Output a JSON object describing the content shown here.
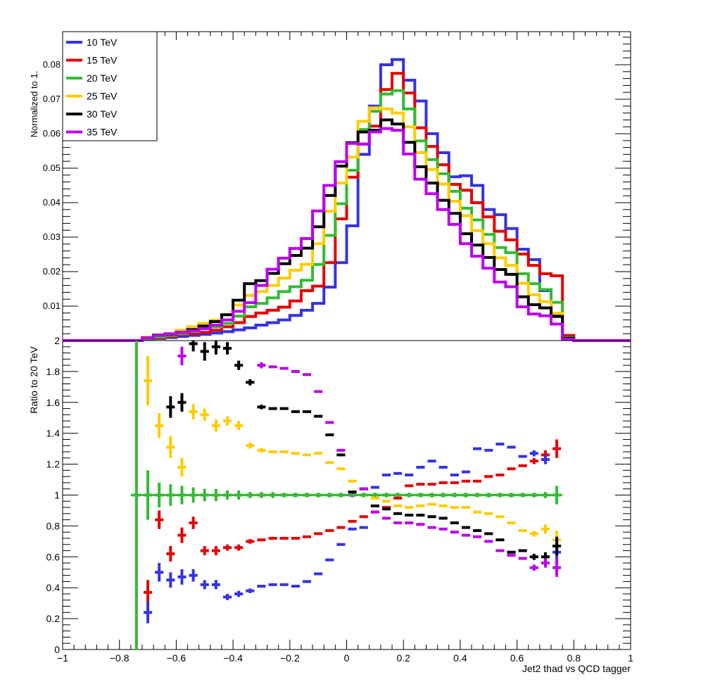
{
  "chart_data": [
    {
      "type": "line",
      "panel": "top",
      "ylabel": "Normalized to 1.",
      "xlim": [
        -1,
        1
      ],
      "ylim": [
        0,
        0.09
      ],
      "yticks": [
        0.01,
        0.02,
        0.03,
        0.04,
        0.05,
        0.06,
        0.07,
        0.08
      ],
      "ytick_labels": [
        "0.01",
        "0.02",
        "0.03",
        "0.04",
        "0.05",
        "0.06",
        "0.07",
        "0.08"
      ],
      "legend_position": "top-left",
      "bin_edges": [
        -1.0,
        -0.96,
        -0.92,
        -0.88,
        -0.84,
        -0.8,
        -0.76,
        -0.72,
        -0.68,
        -0.64,
        -0.6,
        -0.56,
        -0.52,
        -0.48,
        -0.44,
        -0.4,
        -0.36,
        -0.32,
        -0.28,
        -0.24,
        -0.2,
        -0.16,
        -0.12,
        -0.08,
        -0.04,
        0.0,
        0.04,
        0.08,
        0.12,
        0.16,
        0.2,
        0.24,
        0.28,
        0.32,
        0.36,
        0.4,
        0.44,
        0.48,
        0.52,
        0.56,
        0.6,
        0.64,
        0.68,
        0.72,
        0.76,
        0.8,
        0.84,
        0.88,
        0.92,
        0.96,
        1.0
      ],
      "series": [
        {
          "name": "10 TeV",
          "color": "#3333e6",
          "values": [
            0,
            0,
            0,
            0,
            0,
            0,
            0,
            0.0003,
            0.0006,
            0.0009,
            0.0012,
            0.0015,
            0.0018,
            0.0022,
            0.0026,
            0.0031,
            0.0037,
            0.0045,
            0.0052,
            0.006,
            0.0073,
            0.0088,
            0.0108,
            0.0155,
            0.0226,
            0.0333,
            0.054,
            0.068,
            0.08,
            0.0815,
            0.0755,
            0.0695,
            0.06,
            0.0545,
            0.0475,
            0.0478,
            0.045,
            0.038,
            0.0365,
            0.0325,
            0.0265,
            0.0235,
            0.0145,
            0.0075,
            0.0012,
            0,
            0,
            0,
            0,
            0
          ]
        },
        {
          "name": "15 TeV",
          "color": "#e60000",
          "values": [
            0,
            0,
            0,
            0,
            0,
            0,
            0,
            0.0004,
            0.0008,
            0.0012,
            0.0017,
            0.002,
            0.0024,
            0.003,
            0.004,
            0.0052,
            0.007,
            0.008,
            0.0088,
            0.0097,
            0.0115,
            0.0145,
            0.0158,
            0.0226,
            0.0353,
            0.0474,
            0.057,
            0.0622,
            0.0728,
            0.0775,
            0.0718,
            0.0617,
            0.0563,
            0.051,
            0.0453,
            0.0436,
            0.04,
            0.0359,
            0.0317,
            0.0292,
            0.0251,
            0.0218,
            0.0194,
            0.0188,
            0.0015,
            0,
            0,
            0,
            0,
            0
          ]
        },
        {
          "name": "20 TeV",
          "color": "#33bb33",
          "values": [
            0,
            0,
            0,
            0,
            0,
            0,
            0,
            0.0005,
            0.001,
            0.0015,
            0.002,
            0.0026,
            0.0035,
            0.004,
            0.005,
            0.0071,
            0.0098,
            0.0108,
            0.0124,
            0.0142,
            0.0156,
            0.0175,
            0.0221,
            0.0305,
            0.0397,
            0.0494,
            0.0612,
            0.0665,
            0.0715,
            0.0725,
            0.0672,
            0.0579,
            0.0525,
            0.0484,
            0.0433,
            0.0384,
            0.035,
            0.0308,
            0.027,
            0.0255,
            0.0194,
            0.0165,
            0.0148,
            0.0111,
            0.0009,
            0,
            0,
            0,
            0,
            0
          ]
        },
        {
          "name": "25 TeV",
          "color": "#ffcc00",
          "values": [
            0,
            0,
            0,
            0,
            0,
            0,
            0,
            0.001,
            0.0015,
            0.002,
            0.003,
            0.004,
            0.005,
            0.0059,
            0.0075,
            0.0103,
            0.0131,
            0.0142,
            0.016,
            0.0181,
            0.0204,
            0.0221,
            0.0281,
            0.0375,
            0.0457,
            0.0532,
            0.0636,
            0.0675,
            0.0672,
            0.066,
            0.062,
            0.0545,
            0.0496,
            0.0454,
            0.0404,
            0.0362,
            0.0319,
            0.0281,
            0.024,
            0.0218,
            0.0166,
            0.0133,
            0.0113,
            0.0079,
            0.0007,
            0,
            0,
            0,
            0,
            0
          ]
        },
        {
          "name": "30 TeV",
          "color": "#000000",
          "values": [
            0,
            0,
            0,
            0,
            0,
            0,
            0,
            0.0008,
            0.0016,
            0.0019,
            0.0024,
            0.0032,
            0.0042,
            0.0055,
            0.0075,
            0.0117,
            0.0165,
            0.0174,
            0.0195,
            0.0223,
            0.0247,
            0.0268,
            0.033,
            0.0421,
            0.0506,
            0.0574,
            0.0605,
            0.061,
            0.064,
            0.0628,
            0.0575,
            0.0504,
            0.0457,
            0.0407,
            0.0369,
            0.031,
            0.0277,
            0.0241,
            0.0206,
            0.0192,
            0.0127,
            0.0104,
            0.0095,
            0.007,
            0.0007,
            0,
            0,
            0,
            0,
            0
          ]
        },
        {
          "name": "35 TeV",
          "color": "#bb00ee",
          "values": [
            0,
            0,
            0,
            0,
            0,
            0,
            0,
            0.0008,
            0.0015,
            0.002,
            0.0024,
            0.0028,
            0.0035,
            0.0045,
            0.006,
            0.0085,
            0.011,
            0.016,
            0.0207,
            0.0239,
            0.0267,
            0.0296,
            0.0376,
            0.045,
            0.0519,
            0.0572,
            0.057,
            0.0605,
            0.0615,
            0.061,
            0.0541,
            0.0468,
            0.0426,
            0.038,
            0.0337,
            0.0281,
            0.0245,
            0.021,
            0.017,
            0.0156,
            0.0098,
            0.0077,
            0.0072,
            0.0048,
            0.0004,
            0,
            0,
            0,
            0,
            0
          ]
        }
      ]
    },
    {
      "type": "scatter",
      "panel": "bottom",
      "ylabel": "Ratio to 20 TeV",
      "xlabel": "Jet2 thad vs QCD tagger",
      "xlim": [
        -1,
        1
      ],
      "ylim": [
        0,
        2
      ],
      "yticks": [
        0,
        0.2,
        0.4,
        0.6,
        0.8,
        1,
        1.2,
        1.4,
        1.6,
        1.8,
        2
      ],
      "ytick_labels": [
        "0",
        "0.2",
        "0.4",
        "0.6",
        "0.8",
        "1",
        "1.2",
        "1.4",
        "1.6",
        "1.8",
        "2"
      ],
      "xticks": [
        -1,
        -0.8,
        -0.6,
        -0.4,
        -0.2,
        0,
        0.2,
        0.4,
        0.6,
        0.8,
        1
      ],
      "xtick_labels": [
        "−1",
        "−0.8",
        "−0.6",
        "−0.4",
        "−0.2",
        "0",
        "0.2",
        "0.4",
        "0.6",
        "0.8",
        "1"
      ],
      "bin_half_width": 0.02,
      "bin_centers": [
        -0.74,
        -0.7,
        -0.66,
        -0.62,
        -0.58,
        -0.54,
        -0.5,
        -0.46,
        -0.42,
        -0.38,
        -0.34,
        -0.3,
        -0.26,
        -0.22,
        -0.18,
        -0.14,
        -0.1,
        -0.06,
        -0.02,
        0.02,
        0.06,
        0.1,
        0.14,
        0.18,
        0.22,
        0.26,
        0.3,
        0.34,
        0.38,
        0.42,
        0.46,
        0.5,
        0.54,
        0.58,
        0.62,
        0.66,
        0.7,
        0.74
      ],
      "series": [
        {
          "name": "10 TeV",
          "color": "#3333e6",
          "values": [
            null,
            0.24,
            0.5,
            0.45,
            0.47,
            0.48,
            0.42,
            0.42,
            0.34,
            0.36,
            0.38,
            0.41,
            0.42,
            0.42,
            0.41,
            0.44,
            0.49,
            0.58,
            0.68,
            0.78,
            0.79,
            1.05,
            1.13,
            1.14,
            1.13,
            1.18,
            1.22,
            1.18,
            1.13,
            1.15,
            1.3,
            1.29,
            1.33,
            1.31,
            1.25,
            1.27,
            1.23,
            0.63
          ],
          "errors": [
            null,
            0.07,
            0.06,
            0.05,
            0.05,
            0.04,
            0.03,
            0.03,
            0.02,
            0.02,
            0.015,
            0.01,
            0.01,
            0.01,
            0.01,
            0.01,
            0.01,
            0.01,
            0.01,
            0.01,
            0.01,
            0.01,
            0.01,
            0.01,
            0.01,
            0.01,
            0.01,
            0.01,
            0.01,
            0.01,
            0.01,
            0.01,
            0.01,
            0.01,
            0.01,
            0.02,
            0.03,
            0.06
          ]
        },
        {
          "name": "15 TeV",
          "color": "#e60000",
          "values": [
            null,
            0.37,
            0.84,
            0.62,
            0.74,
            0.82,
            0.64,
            0.64,
            0.66,
            0.66,
            0.7,
            0.71,
            0.72,
            0.72,
            0.72,
            0.73,
            0.75,
            0.77,
            0.79,
            0.83,
            0.86,
            0.89,
            0.92,
            0.98,
            1.06,
            1.07,
            1.07,
            1.08,
            1.08,
            1.09,
            1.09,
            1.12,
            1.13,
            1.17,
            1.19,
            1.22,
            1.26,
            1.3
          ],
          "errors": [
            null,
            0.08,
            0.06,
            0.05,
            0.05,
            0.04,
            0.03,
            0.03,
            0.02,
            0.02,
            0.015,
            0.01,
            0.01,
            0.01,
            0.01,
            0.01,
            0.01,
            0.01,
            0.01,
            0.01,
            0.01,
            0.01,
            0.01,
            0.01,
            0.01,
            0.01,
            0.01,
            0.01,
            0.01,
            0.01,
            0.01,
            0.01,
            0.01,
            0.01,
            0.01,
            0.02,
            0.03,
            0.06
          ]
        },
        {
          "name": "20 TeV",
          "color": "#33bb33",
          "values": [
            1,
            1,
            1,
            1,
            1,
            1,
            1,
            1,
            1,
            1,
            1,
            1,
            1,
            1,
            1,
            1,
            1,
            1,
            1,
            1,
            1,
            1,
            1,
            1,
            1,
            1,
            1,
            1,
            1,
            1,
            1,
            1,
            1,
            1,
            1,
            1,
            1,
            1
          ],
          "errors": [
            1.0,
            0.16,
            0.08,
            0.07,
            0.06,
            0.05,
            0.04,
            0.04,
            0.03,
            0.03,
            0.02,
            0.02,
            0.02,
            0.015,
            0.015,
            0.015,
            0.015,
            0.015,
            0.015,
            0.015,
            0.015,
            0.015,
            0.015,
            0.015,
            0.015,
            0.015,
            0.015,
            0.015,
            0.015,
            0.015,
            0.015,
            0.015,
            0.015,
            0.015,
            0.015,
            0.015,
            0.02,
            0.06
          ]
        },
        {
          "name": "25 TeV",
          "color": "#ffcc00",
          "values": [
            null,
            1.74,
            1.45,
            1.31,
            1.18,
            1.54,
            1.52,
            1.45,
            1.48,
            1.45,
            1.32,
            1.29,
            1.28,
            1.28,
            1.27,
            1.26,
            1.27,
            1.21,
            1.17,
            1.09,
            1.04,
            0.98,
            0.96,
            0.93,
            0.92,
            0.93,
            0.94,
            0.93,
            0.92,
            0.92,
            0.89,
            0.88,
            0.86,
            0.82,
            0.77,
            0.75,
            0.78,
            0.71
          ],
          "errors": [
            null,
            0.16,
            0.08,
            0.07,
            0.06,
            0.05,
            0.04,
            0.04,
            0.03,
            0.03,
            0.02,
            0.015,
            0.01,
            0.01,
            0.01,
            0.01,
            0.01,
            0.01,
            0.01,
            0.01,
            0.01,
            0.01,
            0.01,
            0.01,
            0.01,
            0.01,
            0.01,
            0.01,
            0.01,
            0.01,
            0.01,
            0.01,
            0.01,
            0.01,
            0.01,
            0.02,
            0.03,
            0.06
          ]
        },
        {
          "name": "30 TeV",
          "color": "#000000",
          "values": [
            null,
            null,
            null,
            1.57,
            1.6,
            1.98,
            1.93,
            1.96,
            1.95,
            1.84,
            1.73,
            1.57,
            1.56,
            1.56,
            1.54,
            1.54,
            1.51,
            1.39,
            1.26,
            1.02,
            1.04,
            0.93,
            0.91,
            0.88,
            0.87,
            0.87,
            0.86,
            0.85,
            0.82,
            0.79,
            0.77,
            0.75,
            0.71,
            0.63,
            0.64,
            0.6,
            0.6,
            0.67
          ],
          "errors": [
            null,
            null,
            null,
            0.07,
            0.06,
            0.05,
            0.06,
            0.05,
            0.04,
            0.03,
            0.02,
            0.015,
            0.01,
            0.01,
            0.01,
            0.01,
            0.01,
            0.01,
            0.01,
            0.01,
            0.01,
            0.01,
            0.01,
            0.01,
            0.01,
            0.01,
            0.01,
            0.01,
            0.01,
            0.01,
            0.01,
            0.01,
            0.01,
            0.01,
            0.01,
            0.02,
            0.03,
            0.06
          ]
        },
        {
          "name": "35 TeV",
          "color": "#bb00ee",
          "values": [
            null,
            null,
            null,
            null,
            1.9,
            null,
            null,
            null,
            null,
            null,
            null,
            1.84,
            1.83,
            1.82,
            1.8,
            1.78,
            1.67,
            1.47,
            1.29,
            1.0,
            1.04,
            0.89,
            0.85,
            0.82,
            0.82,
            0.81,
            0.79,
            0.78,
            0.76,
            0.74,
            0.73,
            0.7,
            0.64,
            0.61,
            0.59,
            0.53,
            0.56,
            0.53
          ],
          "errors": [
            null,
            null,
            null,
            null,
            0.06,
            null,
            null,
            null,
            null,
            null,
            null,
            0.02,
            0.01,
            0.01,
            0.01,
            0.01,
            0.01,
            0.01,
            0.01,
            0.01,
            0.01,
            0.01,
            0.01,
            0.01,
            0.01,
            0.01,
            0.01,
            0.01,
            0.01,
            0.01,
            0.01,
            0.01,
            0.01,
            0.01,
            0.01,
            0.02,
            0.03,
            0.06
          ]
        }
      ]
    }
  ]
}
